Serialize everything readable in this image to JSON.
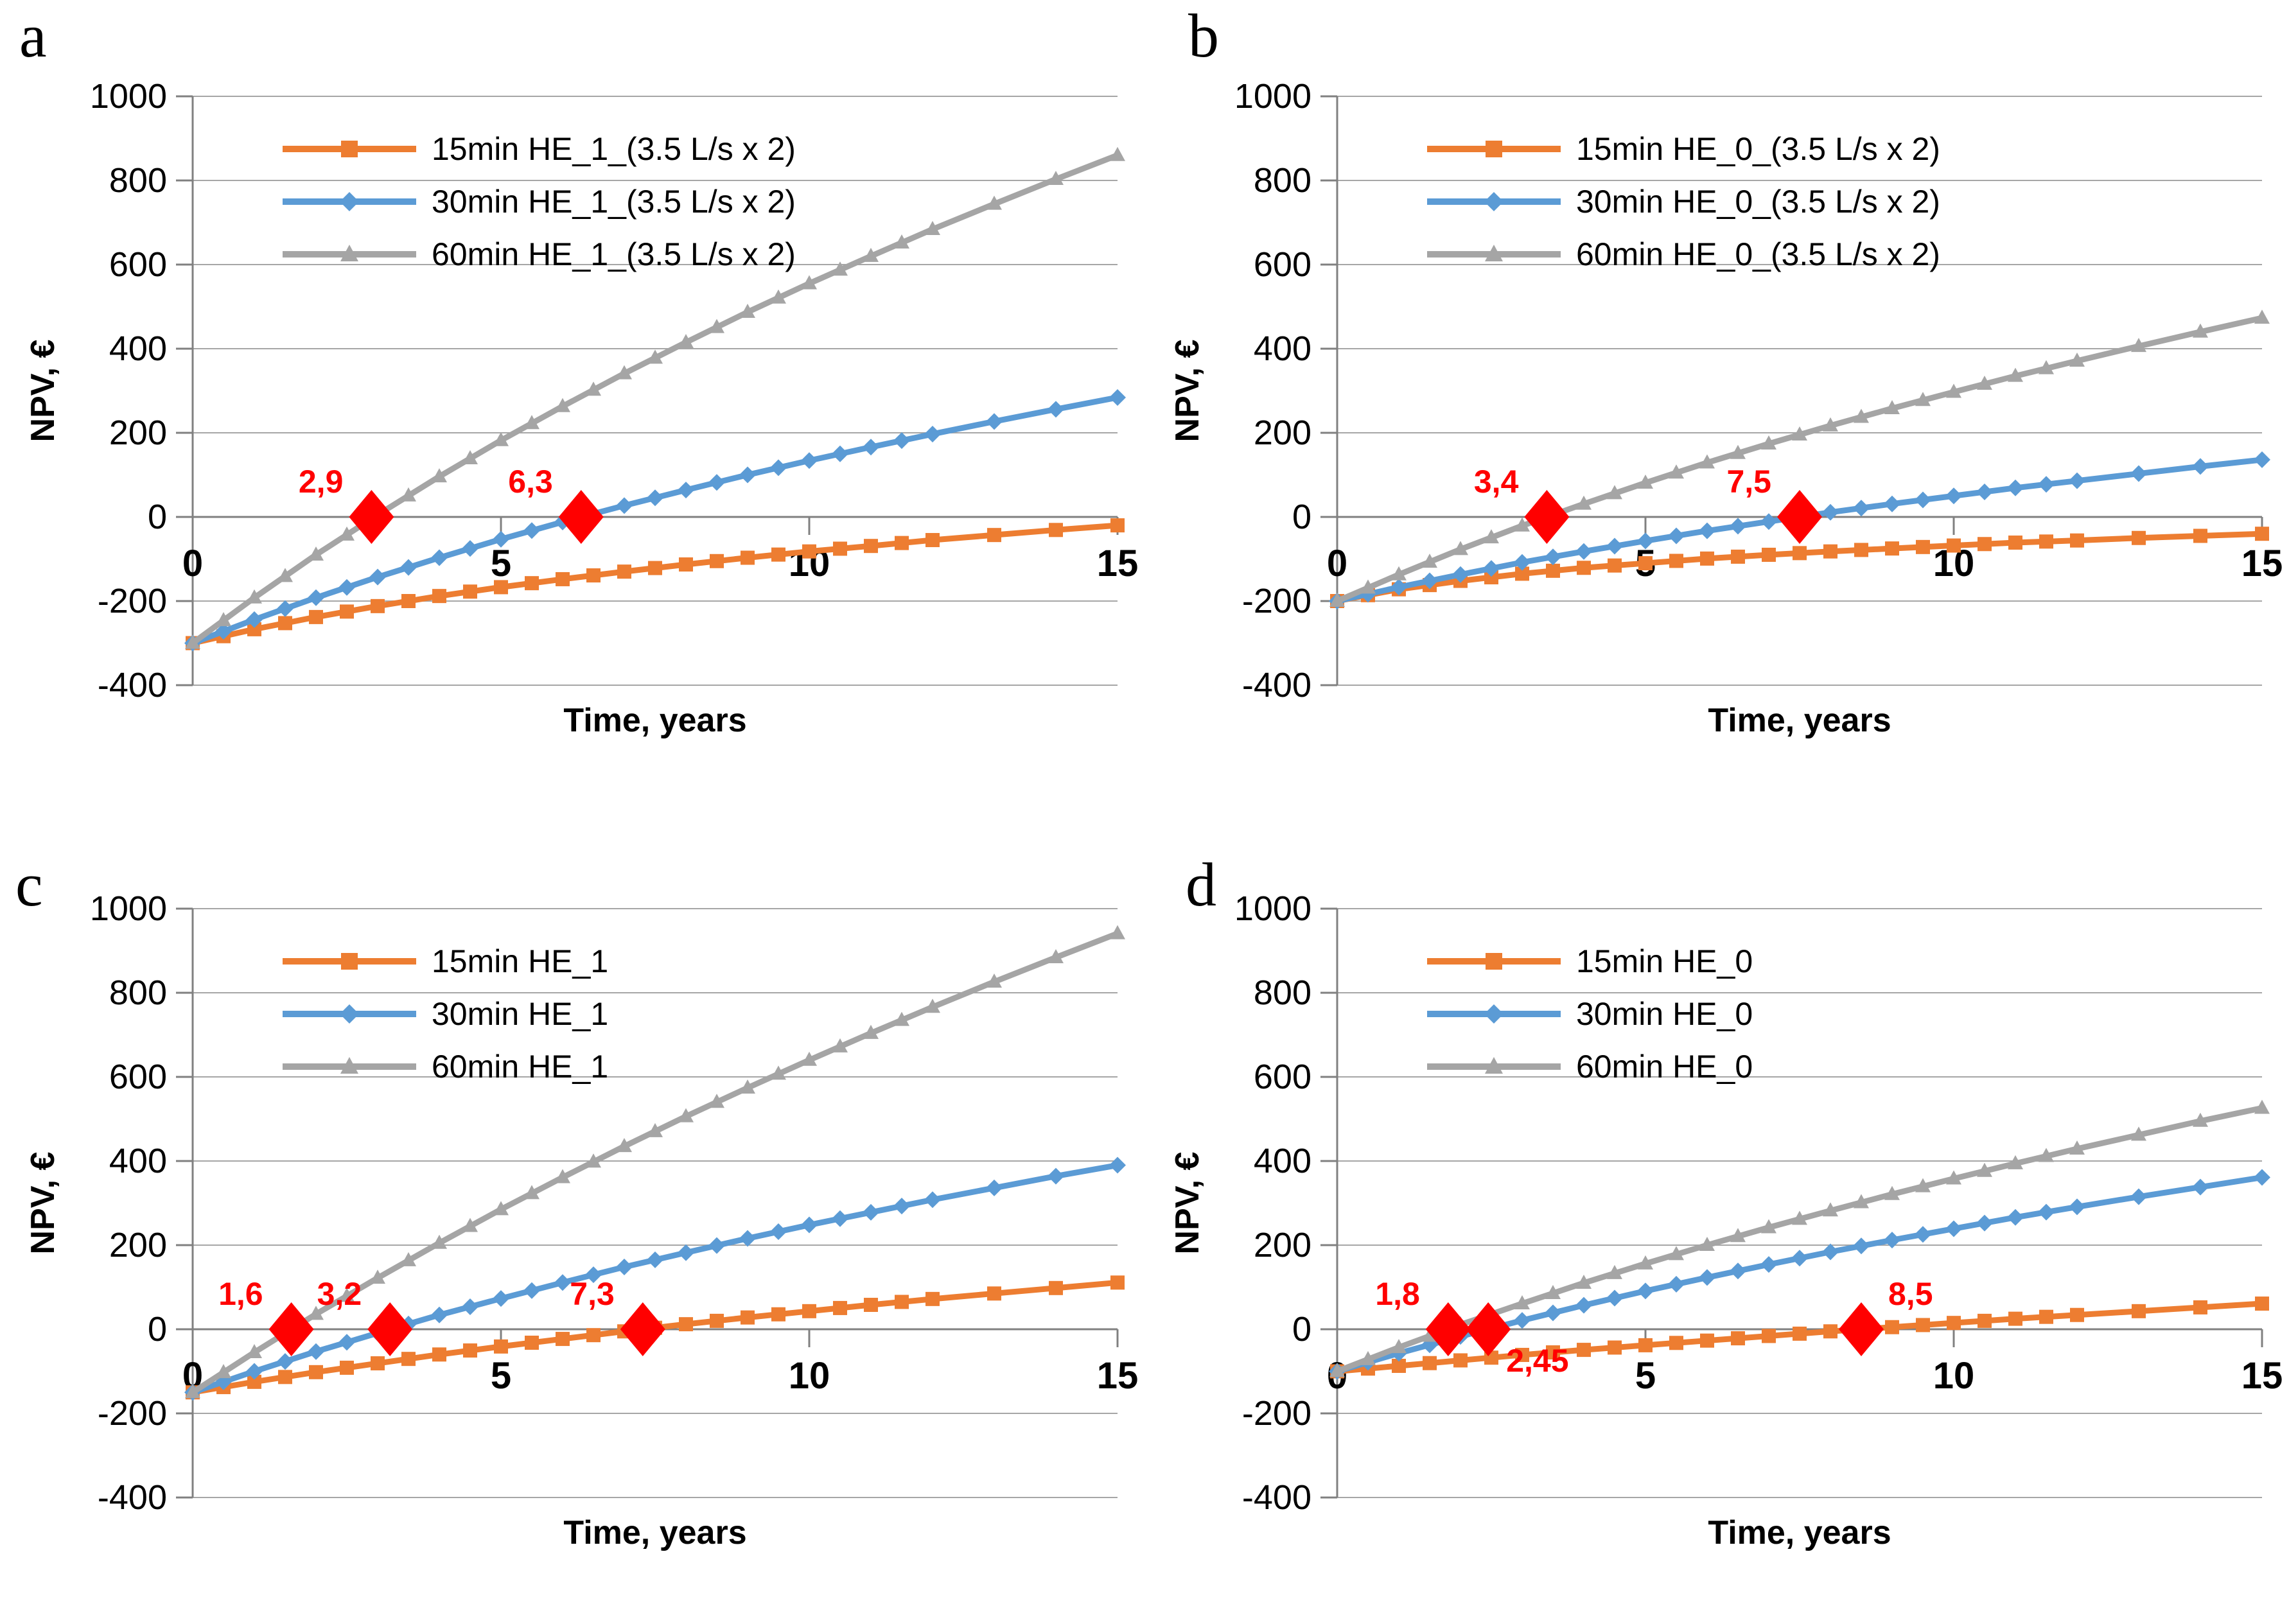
{
  "page": {
    "background": "#ffffff"
  },
  "colors": {
    "orange": "#ED7D31",
    "blue": "#5B9BD5",
    "gray": "#A5A5A5",
    "red": "#FF0000",
    "grid": "#A6A6A6",
    "axis": "#808080",
    "text": "#000000"
  },
  "axes": {
    "xlabel": "Time, years",
    "ylabel": "NPV, €",
    "xlim": [
      0,
      15
    ],
    "ylim": [
      -400,
      1000
    ],
    "x_ticks": [
      0,
      5,
      10,
      15
    ],
    "y_ticks": [
      1000,
      800,
      600,
      400,
      200,
      0,
      -200,
      -400
    ],
    "years": [
      0,
      1,
      2,
      3,
      4,
      5,
      6,
      7,
      8,
      9,
      10,
      11,
      12,
      13,
      14,
      15
    ],
    "grid": "on",
    "legend_position": "upper-left-inside"
  },
  "chart_data": [
    {
      "id": "a",
      "letter": "a",
      "type": "line",
      "series": [
        {
          "name": "15min HE_1_(3.5 L/s x 2)",
          "color": "orange",
          "marker": "square",
          "values": [
            -300,
            -267,
            -238,
            -212,
            -188,
            -167,
            -148,
            -130,
            -113,
            -97,
            -82,
            -69,
            -55,
            -43,
            -31,
            -20
          ]
        },
        {
          "name": "30min HE_1_(3.5 L/s x 2)",
          "color": "blue",
          "marker": "diamond",
          "values": [
            -300,
            -244,
            -192,
            -143,
            -97,
            -53,
            -12,
            27,
            64,
            100,
            134,
            166,
            197,
            227,
            256,
            284
          ]
        },
        {
          "name": "60min HE_1_(3.5 L/s x 2)",
          "color": "gray",
          "marker": "triangle",
          "values": [
            -300,
            -192,
            -90,
            5,
            96,
            182,
            263,
            341,
            415,
            487,
            555,
            620,
            684,
            744,
            803,
            860
          ]
        }
      ],
      "breakeven_markers": [
        {
          "x": 2.9,
          "label": "2,9",
          "placement": "above-left"
        },
        {
          "x": 6.3,
          "label": "6,3",
          "placement": "above-left"
        }
      ]
    },
    {
      "id": "b",
      "letter": "b",
      "type": "line",
      "series": [
        {
          "name": "15min HE_0_(3.5 L/s x 2)",
          "color": "orange",
          "marker": "square",
          "values": [
            -200,
            -172,
            -152,
            -135,
            -121,
            -110,
            -99,
            -90,
            -82,
            -75,
            -68,
            -61,
            -56,
            -50,
            -45,
            -40
          ]
        },
        {
          "name": "30min HE_0_(3.5 L/s x 2)",
          "color": "blue",
          "marker": "diamond",
          "values": [
            -200,
            -167,
            -137,
            -108,
            -82,
            -57,
            -33,
            -11,
            11,
            31,
            50,
            69,
            86,
            103,
            120,
            136
          ]
        },
        {
          "name": "60min HE_0_(3.5 L/s x 2)",
          "color": "gray",
          "marker": "triangle",
          "values": [
            -200,
            -137,
            -77,
            -21,
            31,
            81,
            129,
            174,
            217,
            258,
            297,
            335,
            371,
            406,
            440,
            473
          ]
        }
      ],
      "breakeven_markers": [
        {
          "x": 3.4,
          "label": "3,4",
          "placement": "above-left"
        },
        {
          "x": 7.5,
          "label": "7,5",
          "placement": "above-left"
        }
      ]
    },
    {
      "id": "c",
      "letter": "c",
      "type": "line",
      "series": [
        {
          "name": "15min HE_1",
          "color": "orange",
          "marker": "square",
          "values": [
            -150,
            -125,
            -102,
            -81,
            -60,
            -41,
            -23,
            -5,
            12,
            28,
            43,
            58,
            72,
            85,
            98,
            111
          ]
        },
        {
          "name": "30min HE_1",
          "color": "blue",
          "marker": "diamond",
          "values": [
            -150,
            -100,
            -53,
            -9,
            34,
            73,
            111,
            148,
            182,
            216,
            248,
            278,
            308,
            336,
            364,
            390
          ]
        },
        {
          "name": "60min HE_1",
          "color": "gray",
          "marker": "triangle",
          "values": [
            -150,
            -55,
            36,
            122,
            205,
            285,
            361,
            435,
            506,
            574,
            640,
            704,
            766,
            826,
            884,
            941
          ]
        }
      ],
      "breakeven_markers": [
        {
          "x": 1.6,
          "label": "1,6",
          "placement": "above-left"
        },
        {
          "x": 3.2,
          "label": "3,2",
          "placement": "above-left"
        },
        {
          "x": 7.3,
          "label": "7,3",
          "placement": "above-left"
        }
      ]
    },
    {
      "id": "d",
      "letter": "d",
      "type": "line",
      "series": [
        {
          "name": "15min HE_0",
          "color": "orange",
          "marker": "square",
          "values": [
            -100,
            -87,
            -74,
            -61,
            -49,
            -38,
            -27,
            -16,
            -5,
            5,
            15,
            25,
            34,
            43,
            52,
            61
          ]
        },
        {
          "name": "30min HE_0",
          "color": "blue",
          "marker": "diamond",
          "values": [
            -100,
            -57,
            -17,
            21,
            57,
            91,
            123,
            154,
            184,
            212,
            239,
            266,
            291,
            315,
            338,
            361
          ]
        },
        {
          "name": "60min HE_0",
          "color": "gray",
          "marker": "triangle",
          "values": [
            -100,
            -43,
            11,
            61,
            110,
            156,
            200,
            242,
            282,
            321,
            358,
            394,
            429,
            462,
            495,
            526
          ]
        }
      ],
      "breakeven_markers": [
        {
          "x": 1.8,
          "label": "1,8",
          "placement": "above-left"
        },
        {
          "x": 2.45,
          "label": "2,45",
          "placement": "below-right"
        },
        {
          "x": 8.5,
          "label": "8,5",
          "placement": "above-right"
        }
      ]
    }
  ]
}
